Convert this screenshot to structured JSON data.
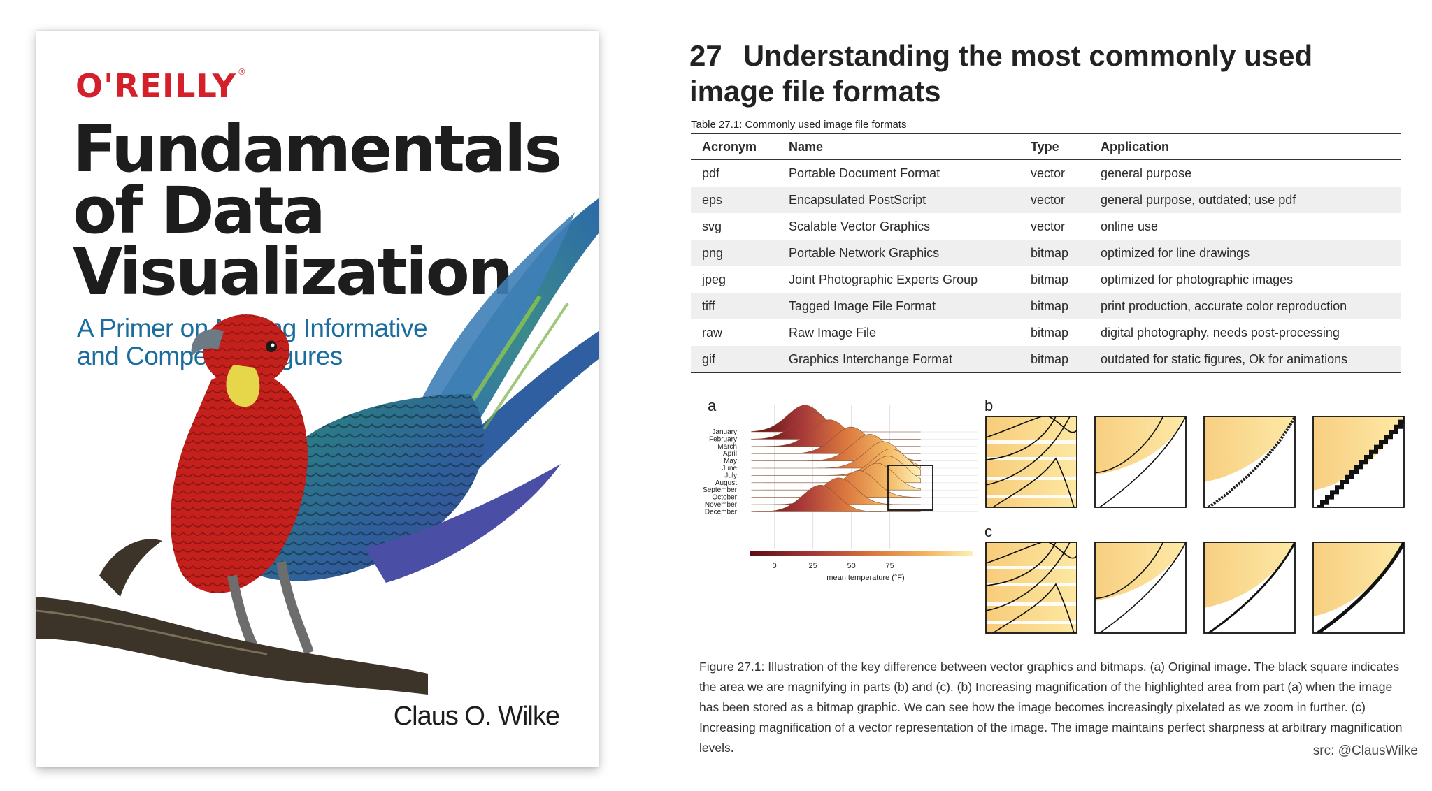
{
  "book": {
    "publisher": "O'REILLY",
    "title": "Fundamentals\nof Data\nVisualization",
    "subtitle": "A Primer on Making Informative\nand Compelling Figures",
    "author": "Claus O. Wilke"
  },
  "chapter": {
    "number": "27",
    "title": "Understanding the most commonly used image file formats"
  },
  "table": {
    "caption": "Table 27.1: Commonly used image file formats",
    "headers": [
      "Acronym",
      "Name",
      "Type",
      "Application"
    ],
    "rows": [
      [
        "pdf",
        "Portable Document Format",
        "vector",
        "general purpose"
      ],
      [
        "eps",
        "Encapsulated PostScript",
        "vector",
        "general purpose, outdated; use pdf"
      ],
      [
        "svg",
        "Scalable Vector Graphics",
        "vector",
        "online use"
      ],
      [
        "png",
        "Portable Network Graphics",
        "bitmap",
        "optimized for line drawings"
      ],
      [
        "jpeg",
        "Joint Photographic Experts Group",
        "bitmap",
        "optimized for photographic images"
      ],
      [
        "tiff",
        "Tagged Image File Format",
        "bitmap",
        "print production, accurate color reproduction"
      ],
      [
        "raw",
        "Raw Image File",
        "bitmap",
        "digital photography, needs post-processing"
      ],
      [
        "gif",
        "Graphics Interchange Format",
        "bitmap",
        "outdated for static figures, Ok for animations"
      ]
    ]
  },
  "figure": {
    "panel_labels": [
      "a",
      "b",
      "c"
    ],
    "months": [
      "January",
      "February",
      "March",
      "April",
      "May",
      "June",
      "July",
      "August",
      "September",
      "October",
      "November",
      "December"
    ],
    "month_peaks": [
      20,
      25,
      36,
      50,
      62,
      71,
      76,
      74,
      67,
      55,
      42,
      30
    ],
    "x_ticks": [
      "0",
      "25",
      "50",
      "75"
    ],
    "xlabel": "mean temperature (°F)",
    "caption": "Figure 27.1: Illustration of the key difference between vector graphics and bitmaps. (a) Original image. The black square indicates the area we are magnifying in parts (b) and (c). (b) Increasing magnification of the highlighted area from part (a) when the image has been stored as a bitmap graphic. We can see how the image becomes increasingly pixelated as we zoom in further. (c) Increasing magnification of a vector representation of the image. The image maintains perfect sharpness at arbitrary magnification levels."
  },
  "credit": "src: @ClausWilke"
}
